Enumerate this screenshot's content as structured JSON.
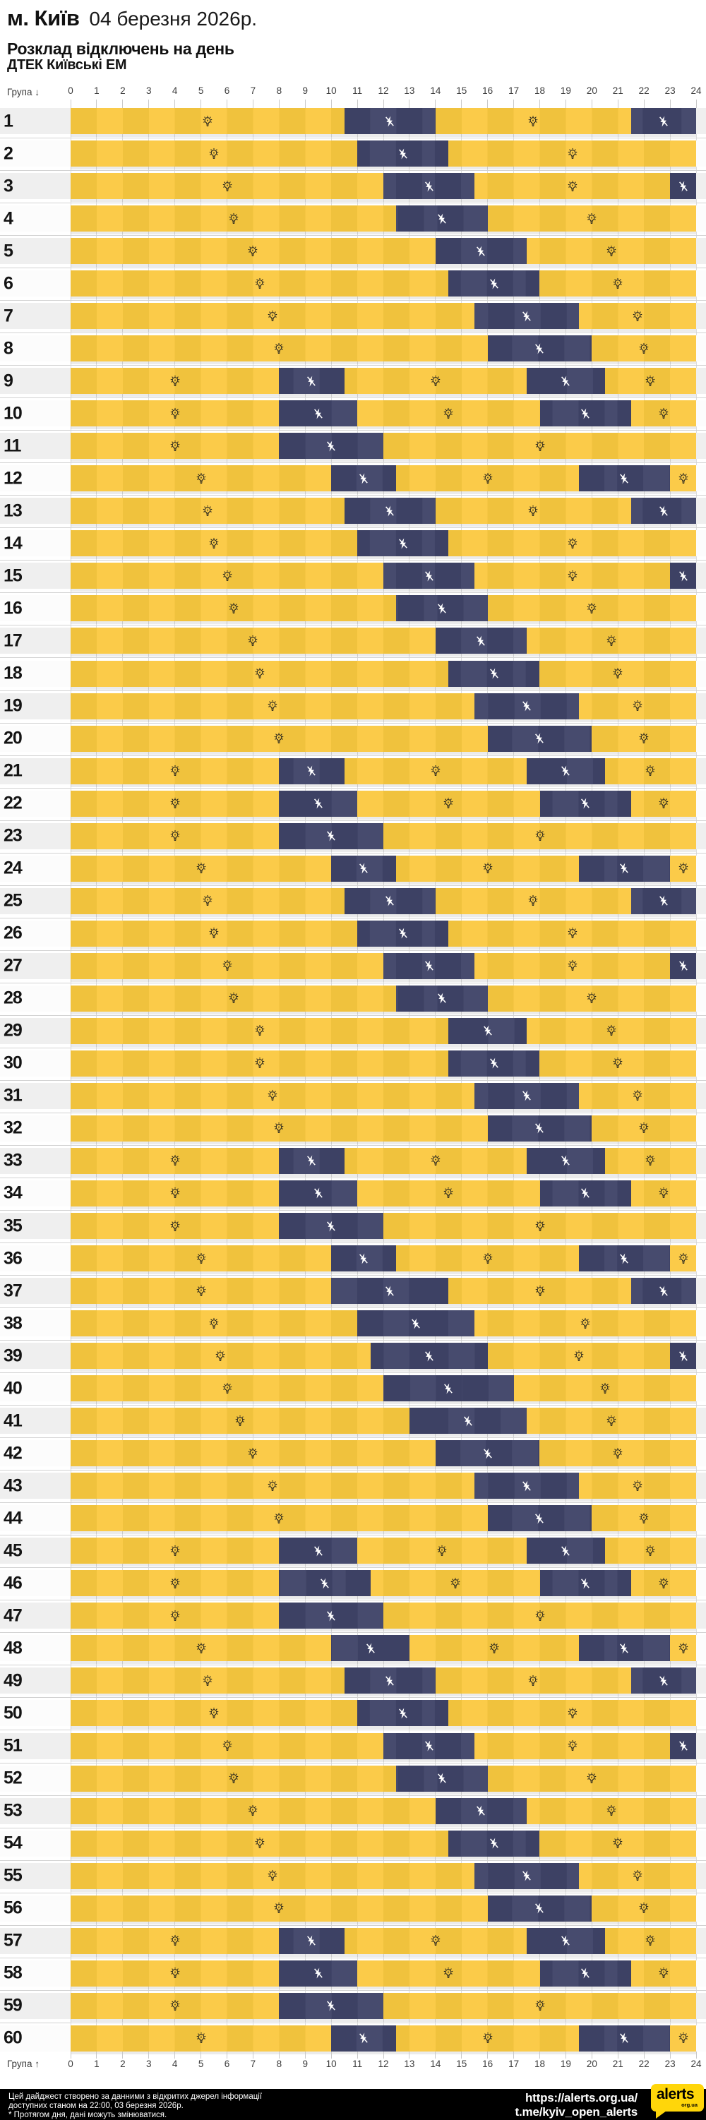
{
  "header": {
    "city": "м. Київ",
    "date": "04 березня 2026р.",
    "title": "Розклад відключень на день",
    "subtitle": "ДТЕК Київські ЕМ"
  },
  "axis": {
    "group_label_top": "Група ↓",
    "group_label_bottom": "Група ↑",
    "hours": [
      "0",
      "1",
      "2",
      "3",
      "4",
      "5",
      "6",
      "7",
      "8",
      "9",
      "10",
      "11",
      "12",
      "13",
      "14",
      "15",
      "16",
      "17",
      "18",
      "19",
      "20",
      "21",
      "22",
      "23",
      "24"
    ]
  },
  "colors": {
    "on_light": "#FBCB49",
    "on_dark": "#F0C23D",
    "off_light": "#474B6E",
    "off_dark": "#3D4164",
    "row_odd_bg": "#EFEFEF",
    "row_even_bg": "#FCFCFC",
    "footer_bg": "#000000",
    "logo_yellow": "#FFD60A"
  },
  "icons": {
    "on_span": "bulb-icon",
    "off_span": "bolt-off-icon"
  },
  "chart_data": {
    "type": "gantt",
    "title": "Розклад відключень на день",
    "x_axis": {
      "min": 0,
      "max": 24,
      "tick_step": 1,
      "unit": "година"
    },
    "semantics": {
      "yellow": "світло є (можливі відключення — іконка лампи)",
      "dark": "відключення електроенергії"
    },
    "groups": [
      {
        "group": "1",
        "outages": [
          [
            10.5,
            14
          ],
          [
            21.5,
            24
          ]
        ]
      },
      {
        "group": "2",
        "outages": [
          [
            11,
            14.5
          ]
        ]
      },
      {
        "group": "3",
        "outages": [
          [
            12,
            15.5
          ],
          [
            23,
            24
          ]
        ]
      },
      {
        "group": "4",
        "outages": [
          [
            12.5,
            16
          ]
        ]
      },
      {
        "group": "5",
        "outages": [
          [
            14,
            17.5
          ]
        ]
      },
      {
        "group": "6",
        "outages": [
          [
            14.5,
            18
          ]
        ]
      },
      {
        "group": "7",
        "outages": [
          [
            15.5,
            19.5
          ]
        ]
      },
      {
        "group": "8",
        "outages": [
          [
            16,
            20
          ]
        ]
      },
      {
        "group": "9",
        "outages": [
          [
            8,
            10.5
          ],
          [
            17.5,
            20.5
          ]
        ]
      },
      {
        "group": "10",
        "outages": [
          [
            8,
            11
          ],
          [
            18,
            21.5
          ]
        ]
      },
      {
        "group": "11",
        "outages": [
          [
            8,
            12
          ]
        ]
      },
      {
        "group": "12",
        "outages": [
          [
            10,
            12.5
          ],
          [
            19.5,
            23
          ]
        ]
      },
      {
        "group": "13",
        "outages": [
          [
            10.5,
            14
          ],
          [
            21.5,
            24
          ]
        ]
      },
      {
        "group": "14",
        "outages": [
          [
            11,
            14.5
          ]
        ]
      },
      {
        "group": "15",
        "outages": [
          [
            12,
            15.5
          ],
          [
            23,
            24
          ]
        ]
      },
      {
        "group": "16",
        "outages": [
          [
            12.5,
            16
          ]
        ]
      },
      {
        "group": "17",
        "outages": [
          [
            14,
            17.5
          ]
        ]
      },
      {
        "group": "18",
        "outages": [
          [
            14.5,
            18
          ]
        ]
      },
      {
        "group": "19",
        "outages": [
          [
            15.5,
            19.5
          ]
        ]
      },
      {
        "group": "20",
        "outages": [
          [
            16,
            20
          ]
        ]
      },
      {
        "group": "21",
        "outages": [
          [
            8,
            10.5
          ],
          [
            17.5,
            20.5
          ]
        ]
      },
      {
        "group": "22",
        "outages": [
          [
            8,
            11
          ],
          [
            18,
            21.5
          ]
        ]
      },
      {
        "group": "23",
        "outages": [
          [
            8,
            12
          ]
        ]
      },
      {
        "group": "24",
        "outages": [
          [
            10,
            12.5
          ],
          [
            19.5,
            23
          ]
        ]
      },
      {
        "group": "25",
        "outages": [
          [
            10.5,
            14
          ],
          [
            21.5,
            24
          ]
        ]
      },
      {
        "group": "26",
        "outages": [
          [
            11,
            14.5
          ]
        ]
      },
      {
        "group": "27",
        "outages": [
          [
            12,
            15.5
          ],
          [
            23,
            24
          ]
        ]
      },
      {
        "group": "28",
        "outages": [
          [
            12.5,
            16
          ]
        ]
      },
      {
        "group": "29",
        "outages": [
          [
            14.5,
            17.5
          ]
        ]
      },
      {
        "group": "30",
        "outages": [
          [
            14.5,
            18
          ]
        ]
      },
      {
        "group": "31",
        "outages": [
          [
            15.5,
            19.5
          ]
        ]
      },
      {
        "group": "32",
        "outages": [
          [
            16,
            20
          ]
        ]
      },
      {
        "group": "33",
        "outages": [
          [
            8,
            10.5
          ],
          [
            17.5,
            20.5
          ]
        ]
      },
      {
        "group": "34",
        "outages": [
          [
            8,
            11
          ],
          [
            18,
            21.5
          ]
        ]
      },
      {
        "group": "35",
        "outages": [
          [
            8,
            12
          ]
        ]
      },
      {
        "group": "36",
        "outages": [
          [
            10,
            12.5
          ],
          [
            19.5,
            23
          ]
        ]
      },
      {
        "group": "37",
        "outages": [
          [
            10,
            14.5
          ],
          [
            21.5,
            24
          ]
        ]
      },
      {
        "group": "38",
        "outages": [
          [
            11,
            15.5
          ]
        ]
      },
      {
        "group": "39",
        "outages": [
          [
            11.5,
            16
          ],
          [
            23,
            24
          ]
        ]
      },
      {
        "group": "40",
        "outages": [
          [
            12,
            17
          ]
        ]
      },
      {
        "group": "41",
        "outages": [
          [
            13,
            17.5
          ]
        ]
      },
      {
        "group": "42",
        "outages": [
          [
            14,
            18
          ]
        ]
      },
      {
        "group": "43",
        "outages": [
          [
            15.5,
            19.5
          ]
        ]
      },
      {
        "group": "44",
        "outages": [
          [
            16,
            20
          ]
        ]
      },
      {
        "group": "45",
        "outages": [
          [
            8,
            11
          ],
          [
            17.5,
            20.5
          ]
        ]
      },
      {
        "group": "46",
        "outages": [
          [
            8,
            11.5
          ],
          [
            18,
            21.5
          ]
        ]
      },
      {
        "group": "47",
        "outages": [
          [
            8,
            12
          ]
        ]
      },
      {
        "group": "48",
        "outages": [
          [
            10,
            13
          ],
          [
            19.5,
            23
          ]
        ]
      },
      {
        "group": "49",
        "outages": [
          [
            10.5,
            14
          ],
          [
            21.5,
            24
          ]
        ]
      },
      {
        "group": "50",
        "outages": [
          [
            11,
            14.5
          ]
        ]
      },
      {
        "group": "51",
        "outages": [
          [
            12,
            15.5
          ],
          [
            23,
            24
          ]
        ]
      },
      {
        "group": "52",
        "outages": [
          [
            12.5,
            16
          ]
        ]
      },
      {
        "group": "53",
        "outages": [
          [
            14,
            17.5
          ]
        ]
      },
      {
        "group": "54",
        "outages": [
          [
            14.5,
            18
          ]
        ]
      },
      {
        "group": "55",
        "outages": [
          [
            15.5,
            19.5
          ]
        ]
      },
      {
        "group": "56",
        "outages": [
          [
            16,
            20
          ]
        ]
      },
      {
        "group": "57",
        "outages": [
          [
            8,
            10.5
          ],
          [
            17.5,
            20.5
          ]
        ]
      },
      {
        "group": "58",
        "outages": [
          [
            8,
            11
          ],
          [
            18,
            21.5
          ]
        ]
      },
      {
        "group": "59",
        "outages": [
          [
            8,
            12
          ]
        ]
      },
      {
        "group": "60",
        "outages": [
          [
            10,
            12.5
          ],
          [
            19.5,
            23
          ]
        ]
      }
    ]
  },
  "footer": {
    "line1": "Цей дайджест створено за данними з відкритих джерел інформації",
    "line2": "доступних станом на 22:00, 03 березня 2026р.",
    "line3": "* Протягом дня, дані можуть змінюватися.",
    "url": "https://alerts.org.ua/",
    "telegram": "t.me/kyiv_open_alerts",
    "logo_text": "alerts",
    "logo_sub": "org.ua"
  }
}
